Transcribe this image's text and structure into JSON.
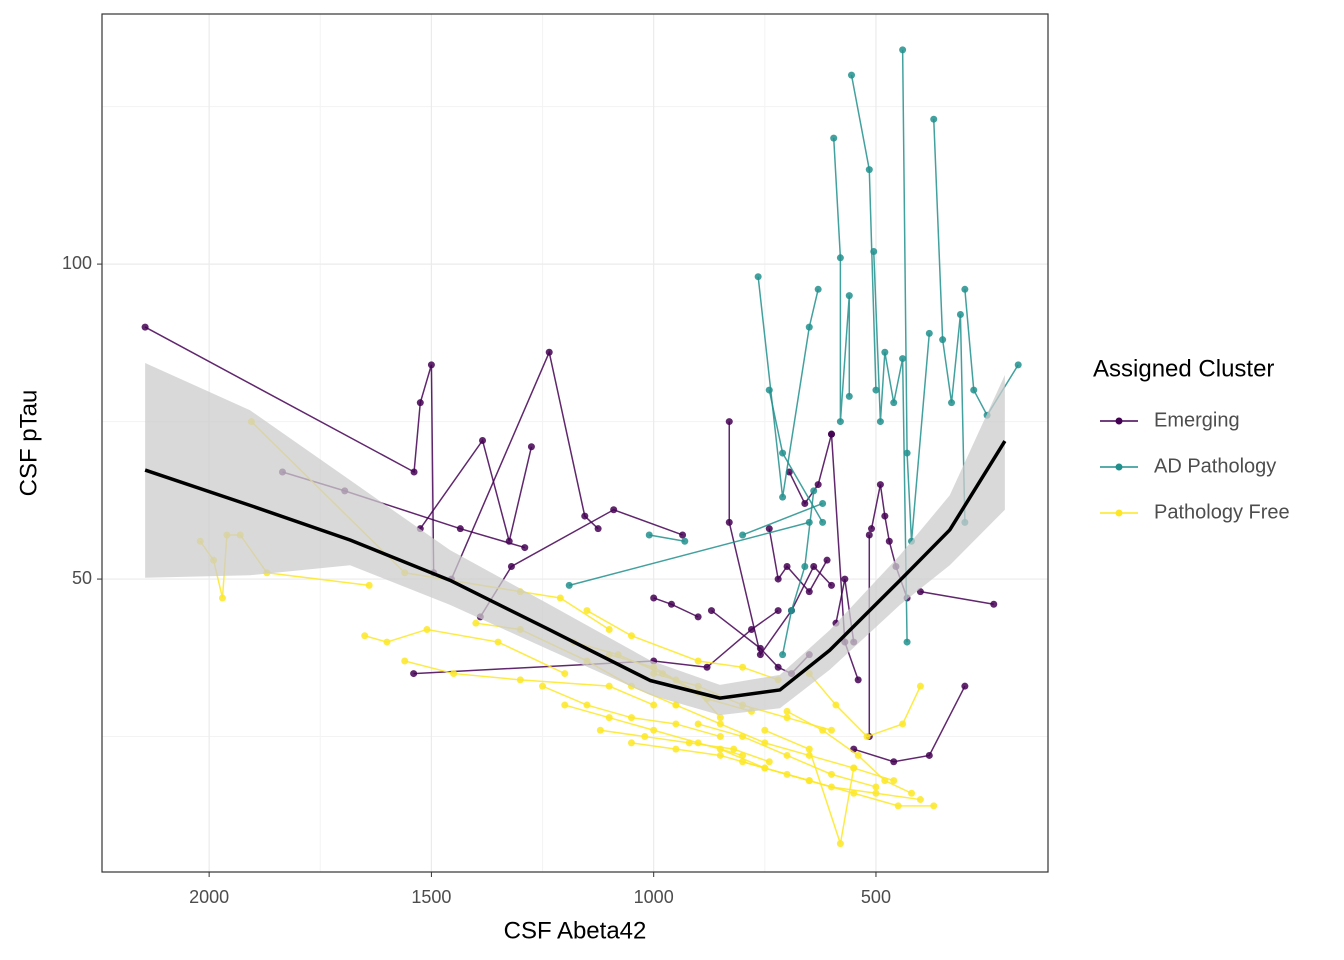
{
  "chart_data": {
    "type": "line",
    "x_label": "CSF Abeta42",
    "y_label": "CSF pTau",
    "legend_title": "Assigned Cluster",
    "legend_position": "right",
    "x_reversed": true,
    "xlim": [
      2241,
      113
    ],
    "ylim": [
      3.5,
      139.7
    ],
    "xticks": [
      2000,
      1500,
      1000,
      500
    ],
    "yticks": [
      50,
      100
    ],
    "minor_xticks": [
      1750,
      1250,
      750
    ],
    "minor_yticks": [
      25,
      75,
      125
    ],
    "grid": true,
    "series": [
      {
        "name": "Emerging",
        "color": "#440154",
        "trajectories": [
          {
            "x": [
              2144,
              1539,
              1525,
              1500,
              1495
            ],
            "y": [
              90,
              67,
              78,
              84,
              51
            ]
          },
          {
            "x": [
              1835,
              1695,
              1435,
              1290
            ],
            "y": [
              67,
              64,
              58,
              55
            ]
          },
          {
            "x": [
              1525,
              1385,
              1325,
              1275
            ],
            "y": [
              58,
              72,
              56,
              71
            ]
          },
          {
            "x": [
              1455,
              1235,
              1155,
              1125
            ],
            "y": [
              50,
              86,
              60,
              58
            ]
          },
          {
            "x": [
              1540,
              1000,
              880,
              780,
              720
            ],
            "y": [
              35,
              37,
              36,
              42,
              45
            ]
          },
          {
            "x": [
              830,
              830,
              760,
              690,
              640,
              600
            ],
            "y": [
              75,
              59,
              38,
              45,
              52,
              49
            ]
          },
          {
            "x": [
              695,
              660,
              630,
              600
            ],
            "y": [
              67,
              62,
              65,
              73
            ]
          },
          {
            "x": [
              590,
              570,
              550
            ],
            "y": [
              43,
              50,
              40
            ]
          },
          {
            "x": [
              510,
              490,
              480,
              470,
              455,
              430
            ],
            "y": [
              58,
              65,
              60,
              56,
              52,
              47
            ]
          },
          {
            "x": [
              400,
              235
            ],
            "y": [
              48,
              46
            ]
          },
          {
            "x": [
              740,
              720,
              700,
              650,
              610
            ],
            "y": [
              58,
              50,
              52,
              48,
              53
            ]
          },
          {
            "x": [
              600,
              570,
              540
            ],
            "y": [
              73,
              40,
              34
            ]
          },
          {
            "x": [
              550,
              460,
              380,
              300
            ],
            "y": [
              23,
              21,
              22,
              33
            ]
          },
          {
            "x": [
              515,
              515
            ],
            "y": [
              57,
              25
            ]
          },
          {
            "x": [
              1000,
              960,
              900
            ],
            "y": [
              47,
              46,
              44
            ]
          },
          {
            "x": [
              1390,
              1320,
              1090,
              935
            ],
            "y": [
              44,
              52,
              61,
              57
            ]
          },
          {
            "x": [
              870,
              760,
              720,
              690,
              650
            ],
            "y": [
              45,
              39,
              36,
              35,
              38
            ]
          }
        ]
      },
      {
        "name": "AD Pathology",
        "color": "#21908D",
        "trajectories": [
          {
            "x": [
              1190,
              650
            ],
            "y": [
              49,
              59
            ]
          },
          {
            "x": [
              1010,
              930
            ],
            "y": [
              57,
              56
            ]
          },
          {
            "x": [
              800,
              620
            ],
            "y": [
              57,
              62
            ]
          },
          {
            "x": [
              765,
              710,
              650,
              630
            ],
            "y": [
              98,
              63,
              90,
              96
            ]
          },
          {
            "x": [
              740,
              710,
              620
            ],
            "y": [
              80,
              70,
              59
            ]
          },
          {
            "x": [
              595,
              580,
              580,
              560,
              560
            ],
            "y": [
              120,
              101,
              75,
              95,
              79
            ]
          },
          {
            "x": [
              555,
              515,
              500
            ],
            "y": [
              130,
              115,
              80
            ]
          },
          {
            "x": [
              505,
              490,
              480,
              460,
              440,
              430
            ],
            "y": [
              102,
              75,
              86,
              78,
              85,
              40
            ]
          },
          {
            "x": [
              440,
              430,
              420,
              380
            ],
            "y": [
              134,
              70,
              56,
              89
            ]
          },
          {
            "x": [
              370,
              350,
              330,
              310,
              300
            ],
            "y": [
              123,
              88,
              78,
              92,
              59
            ]
          },
          {
            "x": [
              300,
              280,
              250,
              180
            ],
            "y": [
              96,
              80,
              76,
              84
            ]
          },
          {
            "x": [
              710,
              690,
              660,
              640
            ],
            "y": [
              38,
              45,
              52,
              64
            ]
          }
        ]
      },
      {
        "name": "Pathology Free",
        "color": "#FDE725",
        "trajectories": [
          {
            "x": [
              1905,
              1560,
              1300,
              1210,
              1100
            ],
            "y": [
              75,
              51,
              48,
              47,
              42
            ]
          },
          {
            "x": [
              2020,
              1990,
              1970,
              1960,
              1930,
              1870,
              1640
            ],
            "y": [
              56,
              53,
              47,
              57,
              57,
              51,
              49
            ]
          },
          {
            "x": [
              1650,
              1600,
              1510,
              1350,
              1200
            ],
            "y": [
              41,
              40,
              42,
              40,
              35
            ]
          },
          {
            "x": [
              1560,
              1450,
              1300,
              1100,
              1000
            ],
            "y": [
              37,
              35,
              34,
              33,
              30
            ]
          },
          {
            "x": [
              1400,
              1300,
              1150,
              1050,
              950
            ],
            "y": [
              43,
              42,
              37,
              33,
              30
            ]
          },
          {
            "x": [
              1250,
              1150,
              1050,
              950,
              850
            ],
            "y": [
              33,
              30,
              28,
              27,
              25
            ]
          },
          {
            "x": [
              1200,
              1100,
              1000,
              900,
              800
            ],
            "y": [
              30,
              28,
              26,
              24,
              22
            ]
          },
          {
            "x": [
              1100,
              1000,
              950,
              900,
              850
            ],
            "y": [
              38,
              36,
              34,
              32,
              28
            ]
          },
          {
            "x": [
              1050,
              950,
              850,
              750,
              650
            ],
            "y": [
              24,
              23,
              22,
              20,
              18
            ]
          },
          {
            "x": [
              1000,
              900,
              800,
              700,
              600
            ],
            "y": [
              35,
              33,
              30,
              28,
              26
            ]
          },
          {
            "x": [
              950,
              850,
              750,
              650,
              550
            ],
            "y": [
              30,
              27,
              24,
              22,
              20
            ]
          },
          {
            "x": [
              900,
              800,
              700,
              600,
              500
            ],
            "y": [
              27,
              25,
              22,
              19,
              17
            ]
          },
          {
            "x": [
              850,
              750,
              650,
              550,
              450,
              370
            ],
            "y": [
              23,
              20,
              18,
              16,
              14,
              14
            ]
          },
          {
            "x": [
              800,
              700,
              600,
              500,
              400
            ],
            "y": [
              21,
              19,
              17,
              16,
              15
            ]
          },
          {
            "x": [
              750,
              650,
              580,
              550,
              460
            ],
            "y": [
              26,
              23,
              8,
              20,
              18
            ]
          },
          {
            "x": [
              700,
              620,
              540,
              480,
              420
            ],
            "y": [
              29,
              26,
              22,
              18,
              16
            ]
          },
          {
            "x": [
              650,
              590,
              520,
              440,
              400
            ],
            "y": [
              35,
              30,
              25,
              27,
              33
            ]
          },
          {
            "x": [
              1150,
              1050,
              900,
              800,
              720
            ],
            "y": [
              45,
              41,
              37,
              36,
              34
            ]
          },
          {
            "x": [
              1180,
              1080,
              980,
              880,
              780
            ],
            "y": [
              40,
              38,
              35,
              31,
              29
            ]
          },
          {
            "x": [
              1120,
              1020,
              920,
              820,
              740
            ],
            "y": [
              26,
              25,
              24,
              23,
              21
            ]
          }
        ]
      }
    ],
    "smooth": {
      "color": "#000000",
      "ribbon_color": "#cccccc",
      "x": [
        2144,
        1908,
        1683,
        1458,
        1233,
        1008,
        851,
        716,
        604,
        446,
        334,
        210
      ],
      "y": [
        67.3,
        61.7,
        56.2,
        49.8,
        41.9,
        33.9,
        31.1,
        32.4,
        38.7,
        49.8,
        57.8,
        71.9
      ],
      "ymin": [
        50.2,
        50.6,
        52.2,
        45.9,
        38.7,
        31.6,
        28.4,
        29.5,
        35.6,
        45.9,
        52.2,
        61.0
      ],
      "ymax": [
        84.3,
        76.8,
        65.7,
        54.6,
        45.9,
        37.1,
        33.2,
        34.8,
        41.9,
        53.8,
        63.3,
        82.4
      ]
    }
  }
}
